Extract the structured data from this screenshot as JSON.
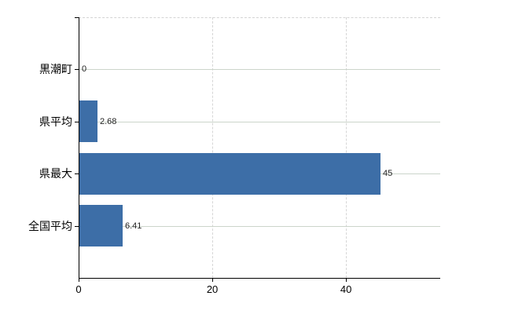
{
  "chart_data": {
    "type": "bar",
    "orientation": "horizontal",
    "title": "",
    "xlabel": "",
    "ylabel": "",
    "categories": [
      "黒潮町",
      "県平均",
      "県最大",
      "全国平均"
    ],
    "values": [
      0,
      2.68,
      45,
      6.41
    ],
    "value_labels": [
      "0",
      "2.68",
      "45",
      "6.41"
    ],
    "xticks": [
      0,
      20,
      40
    ],
    "xtick_labels": [
      "0",
      "20",
      "40"
    ],
    "xlim": [
      0,
      54.1
    ],
    "grid": "on",
    "legend": "none",
    "bar_color": "#3d6ea7",
    "h_gridline_color": "#ccd5cb",
    "v_gridline_color": "#d6d6d6",
    "axis_color": "#000000",
    "label_color": "#000000",
    "value_label_color": "#222222"
  }
}
